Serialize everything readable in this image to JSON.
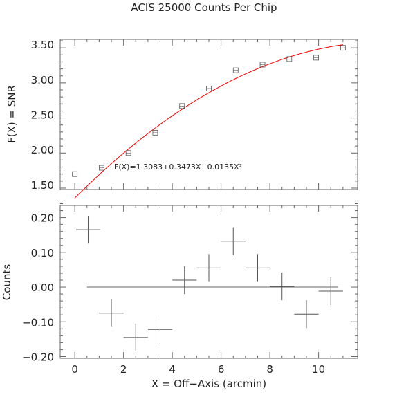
{
  "title": "ACIS 25000 Counts Per Chip",
  "chart_data": [
    {
      "type": "scatter",
      "panel": "top",
      "ylabel": "F(X) = SNR",
      "xlim": [
        -0.6,
        11.6
      ],
      "ylim": [
        1.43,
        3.57
      ],
      "y_ticks": [
        "1.50",
        "2.00",
        "2.50",
        "3.00",
        "3.50"
      ],
      "series": [
        {
          "marker": "square",
          "color": "#555555",
          "x": [
            0.0,
            1.1,
            2.2,
            3.3,
            4.4,
            5.5,
            6.6,
            7.7,
            8.8,
            9.9,
            11.0
          ],
          "y": [
            1.65,
            1.74,
            1.95,
            2.24,
            2.62,
            2.87,
            3.13,
            3.21,
            3.29,
            3.31,
            3.45
          ]
        },
        {
          "type": "line",
          "color": "#ff0000",
          "fit": {
            "a": 1.3083,
            "b": 0.3473,
            "c": -0.0135,
            "x_from": 0.0,
            "x_to": 11.0
          }
        }
      ],
      "annotation": "F(X)=1.3083+0.3473X−0.0135X²"
    },
    {
      "type": "scatter",
      "panel": "bottom",
      "xlabel": "X = Off−Axis (arcmin)",
      "ylabel": "Counts",
      "xlim": [
        -0.6,
        11.6
      ],
      "ylim": [
        -0.205,
        0.235
      ],
      "x_ticks": [
        "0",
        "2",
        "4",
        "6",
        "8",
        "10"
      ],
      "y_ticks": [
        "−0.20",
        "−0.10",
        "0.00",
        "0.10",
        "0.20"
      ],
      "series": [
        {
          "marker": "errorcross",
          "color": "#555555",
          "x": [
            0.55,
            1.5,
            2.5,
            3.5,
            4.5,
            5.5,
            6.5,
            7.5,
            8.5,
            9.5,
            10.5
          ],
          "y": [
            0.165,
            -0.075,
            -0.145,
            -0.122,
            0.02,
            0.055,
            0.132,
            0.055,
            0.002,
            -0.078,
            -0.012
          ],
          "xerr": 0.5,
          "yerr": 0.04
        }
      ],
      "reference_line": {
        "y": 0.0,
        "x_from": 0.5,
        "x_to": 10.8
      }
    }
  ]
}
